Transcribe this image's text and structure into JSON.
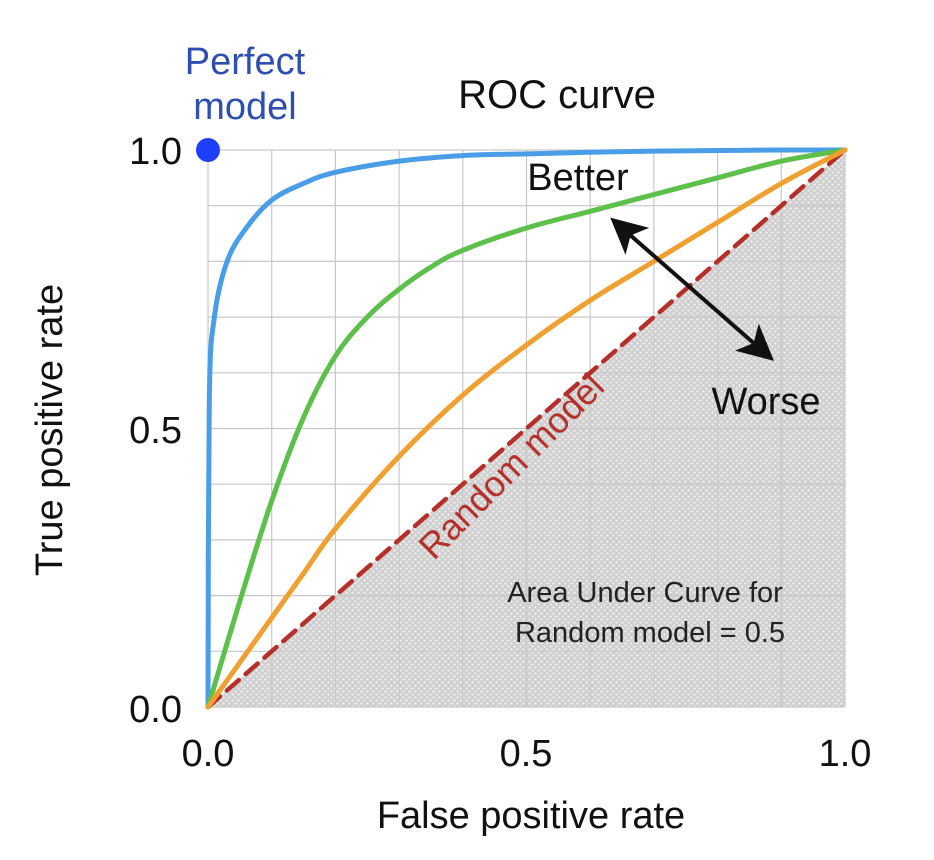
{
  "chart_data": {
    "type": "line",
    "title": "ROC curve",
    "xlabel": "False positive rate",
    "ylabel": "True positive rate",
    "xlim": [
      0,
      1
    ],
    "ylim": [
      0,
      1
    ],
    "x_ticks": [
      "0.0",
      "0.5",
      "1.0"
    ],
    "y_ticks": [
      "0.0",
      "0.5",
      "1.0"
    ],
    "grid": true,
    "perfect_point": {
      "x": 0,
      "y": 1,
      "label_line1": "Perfect",
      "label_line2": "model",
      "color": "#1f3fff"
    },
    "series": [
      {
        "color": "#4a9ee8",
        "x": [
          0,
          0.002,
          0.01,
          0.03,
          0.06,
          0.1,
          0.15,
          0.2,
          0.3,
          0.4,
          0.5,
          0.6,
          0.7,
          0.8,
          0.9,
          1.0
        ],
        "y": [
          0,
          0.55,
          0.7,
          0.8,
          0.86,
          0.91,
          0.94,
          0.96,
          0.98,
          0.99,
          0.993,
          0.996,
          0.998,
          0.999,
          1.0,
          1.0
        ]
      },
      {
        "color": "#5cc04a",
        "x": [
          0,
          0.05,
          0.1,
          0.15,
          0.2,
          0.25,
          0.3,
          0.35,
          0.4,
          0.5,
          0.6,
          0.7,
          0.8,
          0.9,
          1.0
        ],
        "y": [
          0,
          0.19,
          0.37,
          0.52,
          0.63,
          0.7,
          0.75,
          0.79,
          0.82,
          0.86,
          0.89,
          0.92,
          0.95,
          0.98,
          1.0
        ]
      },
      {
        "color": "#f0a030",
        "x": [
          0,
          0.05,
          0.1,
          0.15,
          0.2,
          0.3,
          0.4,
          0.5,
          0.6,
          0.7,
          0.8,
          0.9,
          1.0
        ],
        "y": [
          0,
          0.08,
          0.16,
          0.24,
          0.32,
          0.45,
          0.56,
          0.65,
          0.73,
          0.8,
          0.87,
          0.94,
          1.0
        ]
      },
      {
        "color": "#b5302a",
        "dashed": true,
        "x": [
          0,
          1
        ],
        "y": [
          0,
          1
        ]
      }
    ],
    "annotations": {
      "better": "Better",
      "worse": "Worse",
      "random_model": "Random model",
      "auc_line1": "Area Under Curve for",
      "auc_line2": "Random model = 0.5"
    }
  }
}
